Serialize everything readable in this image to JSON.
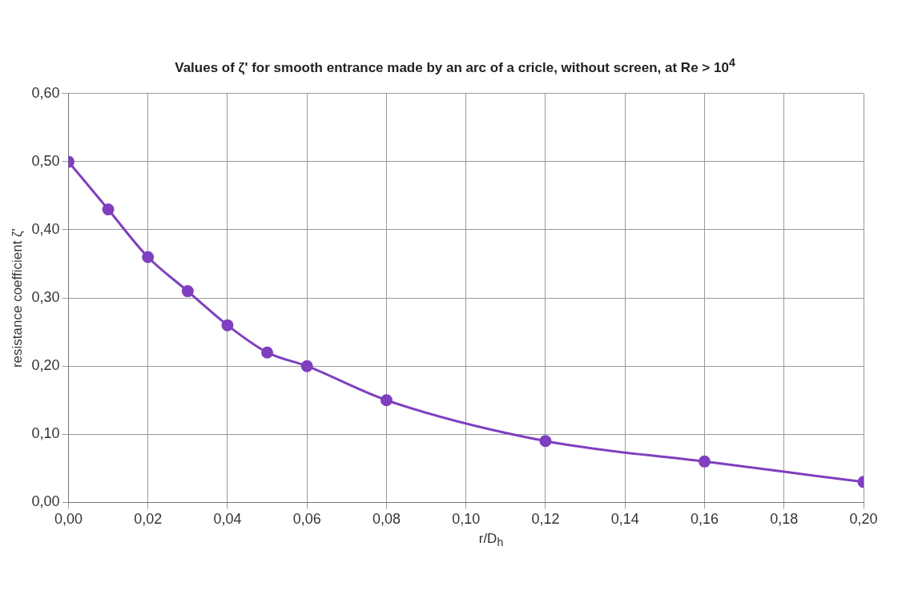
{
  "chart_data": {
    "type": "line",
    "title": "Values of ζ' for smooth entrance made by an arc of a cricle, without screen, at Re > 10$^{4}$",
    "xlabel": "r/D$_{h}$",
    "ylabel": "resistance coefficient ζ'",
    "x": [
      0,
      0.01,
      0.02,
      0.03,
      0.04,
      0.05,
      0.06,
      0.08,
      0.12,
      0.16,
      0.2
    ],
    "series": [
      {
        "color": "#7f3fbf",
        "values": [
          0.5,
          0.43,
          0.36,
          0.31,
          0.26,
          0.22,
          0.2,
          0.15,
          0.09,
          0.06,
          0.03
        ]
      }
    ],
    "xlim": [
      0,
      0.2
    ],
    "xticks": [
      {
        "value": 0,
        "label": "0,00"
      },
      {
        "value": 0.02,
        "label": "0,02"
      },
      {
        "value": 0.04,
        "label": "0,04"
      },
      {
        "value": 0.06,
        "label": "0,06"
      },
      {
        "value": 0.08,
        "label": "0,08"
      },
      {
        "value": 0.1,
        "label": "0,10"
      },
      {
        "value": 0.12,
        "label": "0,12"
      },
      {
        "value": 0.14,
        "label": "0,14"
      },
      {
        "value": 0.16,
        "label": "0,16"
      },
      {
        "value": 0.18,
        "label": "0,18"
      },
      {
        "value": 0.2,
        "label": "0,20"
      }
    ],
    "ylim": [
      0,
      0.6
    ],
    "yticks": [
      {
        "value": 0,
        "label": "0,00"
      },
      {
        "value": 0.1,
        "label": "0,10"
      },
      {
        "value": 0.2,
        "label": "0,20"
      },
      {
        "value": 0.3,
        "label": "0,30"
      },
      {
        "value": 0.4,
        "label": "0,40"
      },
      {
        "value": 0.5,
        "label": "0,50"
      },
      {
        "value": 0.6,
        "label": "0,60"
      }
    ],
    "grid": true,
    "legend": false,
    "marker": "circle",
    "line_style": "solid"
  }
}
